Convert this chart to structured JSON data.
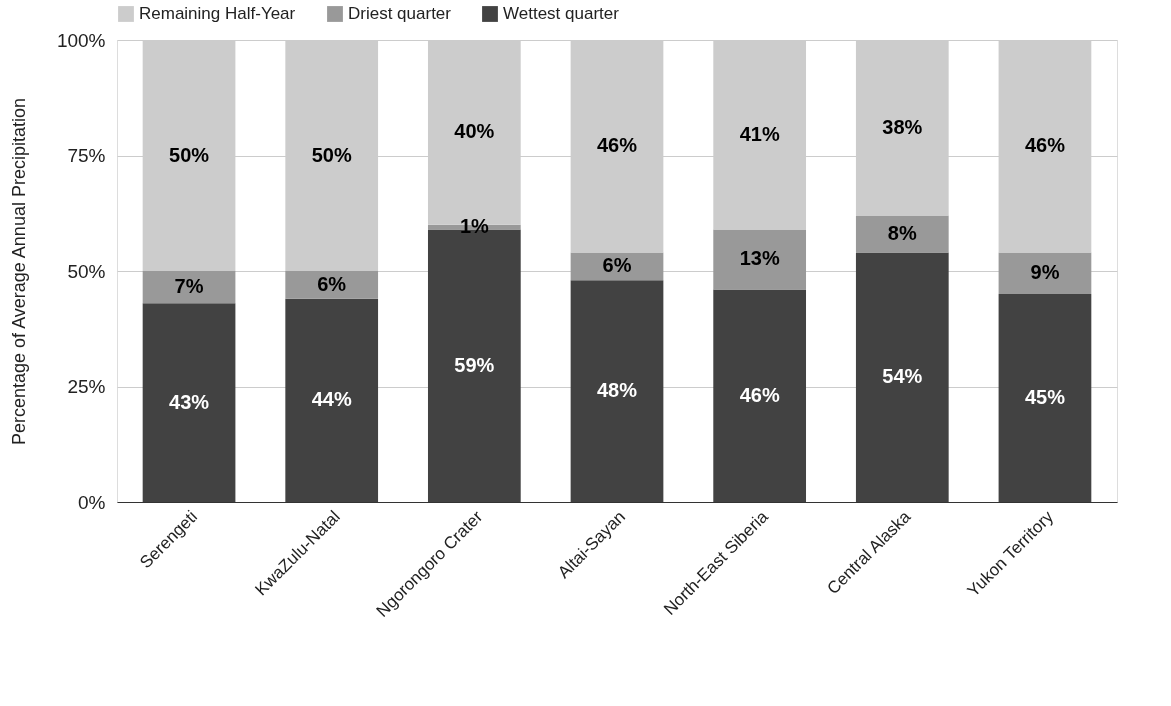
{
  "chart_data": {
    "type": "bar",
    "stacked": true,
    "ylabel": "Percentage of Average Annual Precipitation",
    "categories": [
      "Serengeti",
      "KwaZulu-Natal",
      "Ngorongoro Crater",
      "Altai-Sayan",
      "North-East Siberia",
      "Central Alaska",
      "Yukon Territory"
    ],
    "series": [
      {
        "name": "Wettest quarter",
        "color": "#424242",
        "values": [
          43,
          44,
          59,
          48,
          46,
          54,
          45
        ],
        "value_labels": [
          "43%",
          "44%",
          "59%",
          "48%",
          "46%",
          "54%",
          "45%"
        ]
      },
      {
        "name": "Driest quarter",
        "color": "#999999",
        "values": [
          7,
          6,
          1,
          6,
          13,
          8,
          9
        ],
        "value_labels": [
          "7%",
          "6%",
          "1%",
          "6%",
          "13%",
          "8%",
          "9%"
        ]
      },
      {
        "name": "Remaining Half-Year",
        "color": "#cccccc",
        "values": [
          50,
          50,
          40,
          46,
          41,
          38,
          46
        ],
        "value_labels": [
          "50%",
          "50%",
          "40%",
          "46%",
          "41%",
          "38%",
          "46%"
        ]
      }
    ],
    "ylim": [
      0,
      100
    ],
    "yticks": [
      {
        "value": 0,
        "label": "0%"
      },
      {
        "value": 25,
        "label": "25%"
      },
      {
        "value": 50,
        "label": "50%"
      },
      {
        "value": 75,
        "label": "75%"
      },
      {
        "value": 100,
        "label": "100%"
      }
    ],
    "grid": "y",
    "legend": "top"
  }
}
